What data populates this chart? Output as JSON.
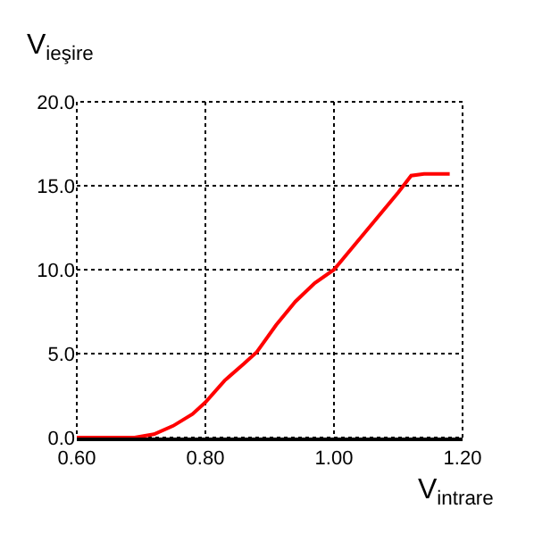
{
  "chart_data": {
    "type": "line",
    "xlabel": "V$_{intrare}$",
    "ylabel": "V$_{ieşire}$",
    "x": [
      0.6,
      0.69,
      0.72,
      0.75,
      0.78,
      0.8,
      0.83,
      0.86,
      0.88,
      0.91,
      0.94,
      0.97,
      1.0,
      1.05,
      1.1,
      1.12,
      1.14,
      1.18
    ],
    "series": [
      {
        "color": "#ff0000",
        "values": [
          0,
          0,
          0.2,
          0.7,
          1.4,
          2.1,
          3.4,
          4.4,
          5.1,
          6.7,
          8.1,
          9.2,
          10.0,
          12.3,
          14.6,
          15.6,
          15.7,
          15.7
        ]
      }
    ],
    "xlim": [
      0.6,
      1.2
    ],
    "xticks": [
      {
        "value": 0.6,
        "label": "0.60"
      },
      {
        "value": 0.8,
        "label": "0.80"
      },
      {
        "value": 1.0,
        "label": "1.00"
      },
      {
        "value": 1.2,
        "label": "1.20"
      }
    ],
    "ylim": [
      0,
      20
    ],
    "yticks": [
      {
        "value": 0,
        "label": "0.0"
      },
      {
        "value": 5,
        "label": "5.0"
      },
      {
        "value": 10,
        "label": "10.0"
      },
      {
        "value": 15,
        "label": "15.0"
      },
      {
        "value": 20,
        "label": "20.0"
      }
    ],
    "grid": true,
    "line_style": "solid",
    "legend": false
  }
}
